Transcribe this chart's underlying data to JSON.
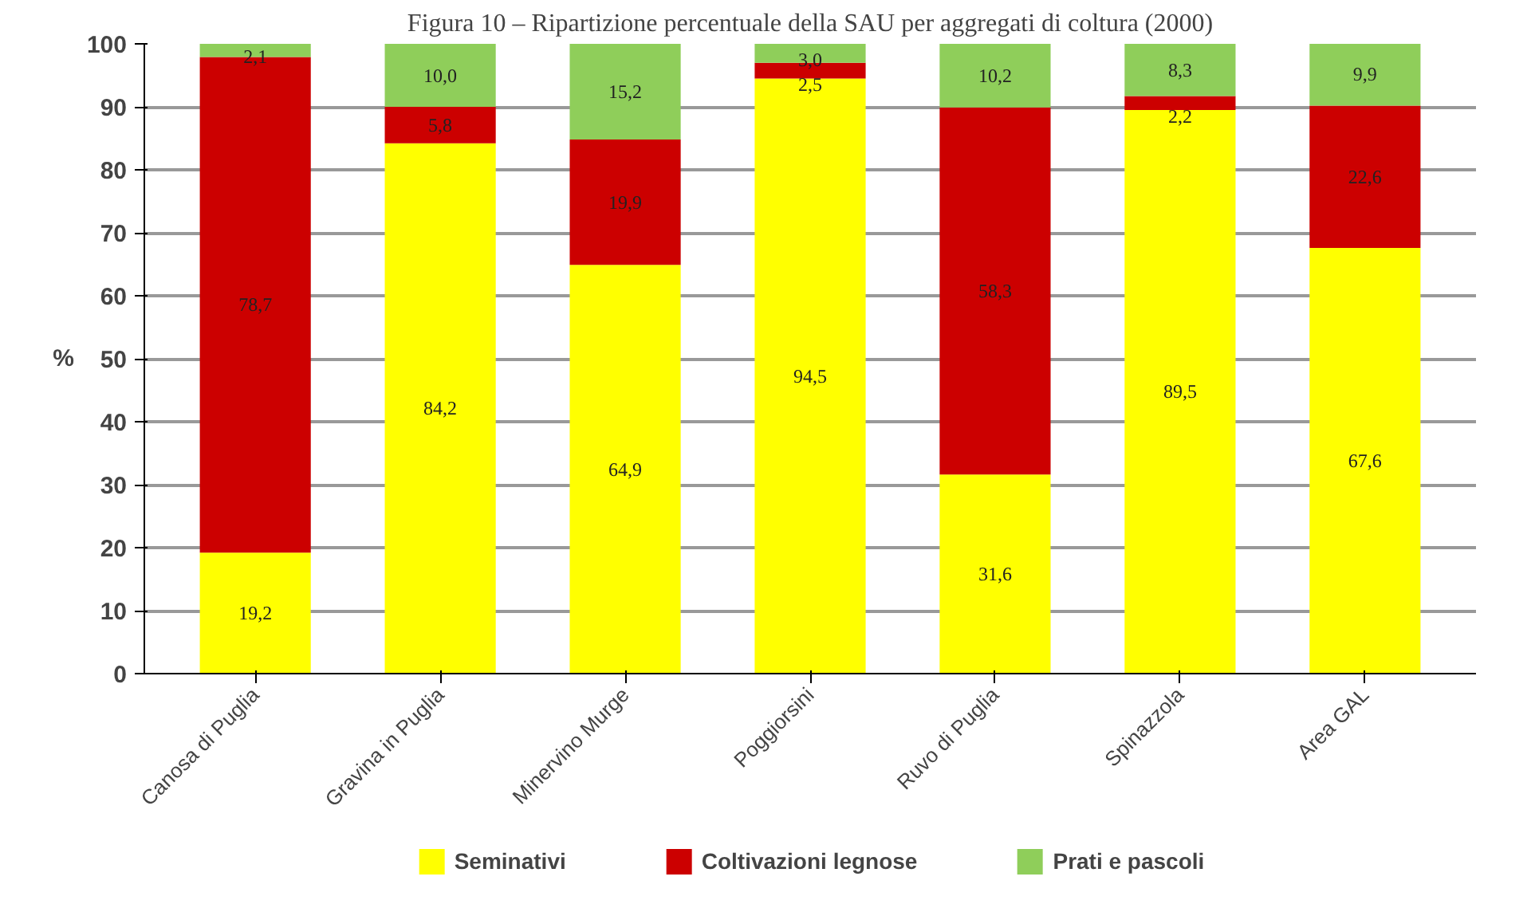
{
  "chart_data": {
    "type": "bar",
    "title": "Figura 10 – Ripartizione percentuale della SAU per aggregati di coltura (2000)",
    "ylabel": "%",
    "categories": [
      "Canosa di Puglia",
      "Gravina in Puglia",
      "Minervino Murge",
      "Poggiorsini",
      "Ruvo di Puglia",
      "Spinazzola",
      "Area GAL"
    ],
    "stacked": true,
    "ylim": [
      0,
      100
    ],
    "yticks": [
      0,
      10,
      20,
      30,
      40,
      50,
      60,
      70,
      80,
      90,
      100
    ],
    "grid": "y",
    "legend": "bottom",
    "series": [
      {
        "name": "Seminativi",
        "color": "#ffff00",
        "values": [
          19.2,
          84.2,
          64.9,
          94.5,
          31.6,
          89.5,
          67.6
        ],
        "value_labels": [
          "19,2",
          "84,2",
          "64,9",
          "94,5",
          "31,6",
          "89,5",
          "67,6"
        ]
      },
      {
        "name": "Coltivazioni legnose",
        "color": "#cc0000",
        "values": [
          78.7,
          5.8,
          19.9,
          2.5,
          58.3,
          2.2,
          22.6
        ],
        "value_labels": [
          "78,7",
          "5,8",
          "19,9",
          "2,5",
          "58,3",
          "2,2",
          "22,6"
        ]
      },
      {
        "name": "Prati e pascoli",
        "color": "#8fce5a",
        "values": [
          2.1,
          10.0,
          15.2,
          3.0,
          10.2,
          8.3,
          9.9
        ],
        "value_labels": [
          "2,1",
          "10,0",
          "15,2",
          "3,0",
          "10,2",
          "8,3",
          "9,9"
        ]
      }
    ]
  }
}
